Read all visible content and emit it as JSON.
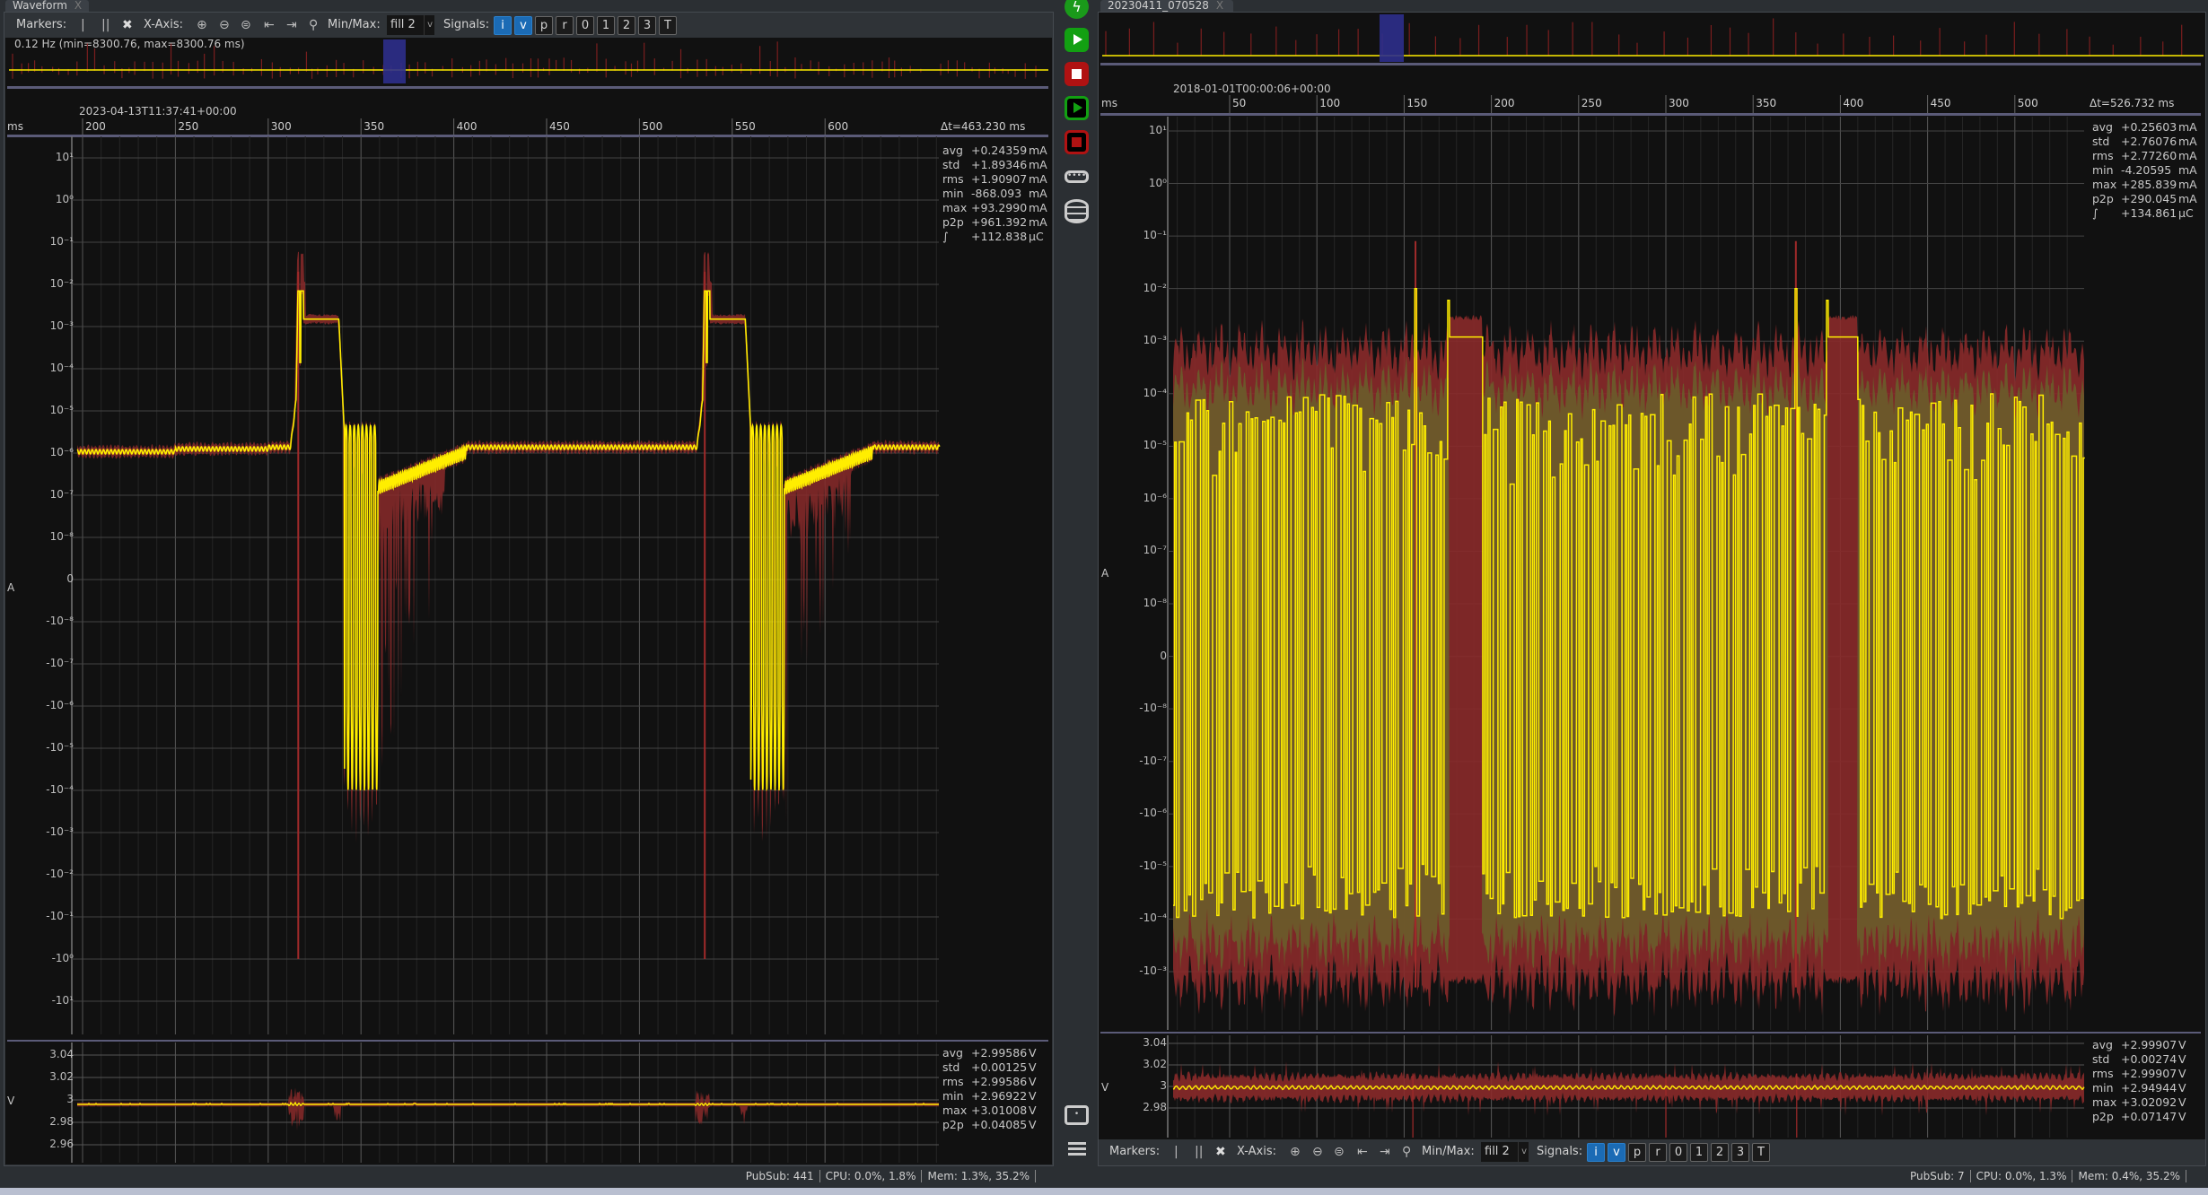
{
  "left": {
    "tab": {
      "label": "Waveform",
      "close": "X"
    },
    "toolbar": {
      "markers": "Markers:",
      "x_axis": "X-Axis:",
      "minmax": "Min/Max:",
      "minmax_value": "fill 2",
      "signals": "Signals:",
      "signal_buttons": [
        {
          "label": "i",
          "on": true
        },
        {
          "label": "v",
          "on": true
        },
        {
          "label": "p",
          "on": false
        },
        {
          "label": "r",
          "on": false
        },
        {
          "label": "0",
          "on": false
        },
        {
          "label": "1",
          "on": false
        },
        {
          "label": "2",
          "on": false
        },
        {
          "label": "3",
          "on": false
        },
        {
          "label": "T",
          "on": false
        }
      ]
    },
    "overview_text": "0.12 Hz (min=8300.76, max=8300.76 ms)",
    "timestamp": "2023-04-13T11:37:41+00:00",
    "x_unit": "ms",
    "x_ticks": [
      "200",
      "250",
      "300",
      "350",
      "400",
      "450",
      "500",
      "550",
      "600"
    ],
    "delta_t": "Δt=463.230 ms",
    "current": {
      "unit": "A",
      "y_ticks": [
        "10¹",
        "10⁰",
        "10⁻¹",
        "10⁻²",
        "10⁻³",
        "10⁻⁴",
        "10⁻⁵",
        "10⁻⁶",
        "10⁻⁷",
        "10⁻⁸",
        "0",
        "-10⁻⁸",
        "-10⁻⁷",
        "-10⁻⁶",
        "-10⁻⁵",
        "-10⁻⁴",
        "-10⁻³",
        "-10⁻²",
        "-10⁻¹",
        "-10⁰",
        "-10¹"
      ],
      "stats": [
        [
          "avg",
          "+0.24359",
          "mA"
        ],
        [
          "std",
          "+1.89346",
          "mA"
        ],
        [
          "rms",
          "+1.90907",
          "mA"
        ],
        [
          "min",
          "-868.093",
          "mA"
        ],
        [
          "max",
          "+93.2990",
          "mA"
        ],
        [
          "p2p",
          "+961.392",
          "mA"
        ],
        [
          "∫",
          "+112.838",
          "µC"
        ]
      ]
    },
    "voltage": {
      "unit": "V",
      "y_ticks": [
        "3.04",
        "3.02",
        "3",
        "2.98",
        "2.96"
      ],
      "stats": [
        [
          "avg",
          "+2.99586",
          "V"
        ],
        [
          "std",
          "+0.00125",
          "V"
        ],
        [
          "rms",
          "+2.99586",
          "V"
        ],
        [
          "min",
          "+2.96922",
          "V"
        ],
        [
          "max",
          "+3.01008",
          "V"
        ],
        [
          "p2p",
          "+0.04085",
          "V"
        ]
      ]
    },
    "status": {
      "pubsub": "PubSub: 441",
      "cpu": "CPU: 0.0%, 1.8%",
      "mem": "Mem: 1.3%, 35.2%"
    }
  },
  "right": {
    "tab": {
      "label": "20230411_070528",
      "close": "X"
    },
    "toolbar": {
      "markers": "Markers:",
      "x_axis": "X-Axis:",
      "minmax": "Min/Max:",
      "minmax_value": "fill 2",
      "signals": "Signals:",
      "signal_buttons": [
        {
          "label": "i",
          "on": true
        },
        {
          "label": "v",
          "on": true
        },
        {
          "label": "p",
          "on": false
        },
        {
          "label": "r",
          "on": false
        },
        {
          "label": "0",
          "on": false
        },
        {
          "label": "1",
          "on": false
        },
        {
          "label": "2",
          "on": false
        },
        {
          "label": "3",
          "on": false
        },
        {
          "label": "T",
          "on": false
        }
      ]
    },
    "timestamp": "2018-01-01T00:00:06+00:00",
    "x_unit": "ms",
    "x_ticks": [
      "50",
      "100",
      "150",
      "200",
      "250",
      "300",
      "350",
      "400",
      "450",
      "500"
    ],
    "delta_t": "Δt=526.732 ms",
    "current": {
      "unit": "A",
      "y_ticks": [
        "10¹",
        "10⁰",
        "10⁻¹",
        "10⁻²",
        "10⁻³",
        "10⁻⁴",
        "10⁻⁵",
        "10⁻⁶",
        "10⁻⁷",
        "10⁻⁸",
        "0",
        "-10⁻⁸",
        "-10⁻⁷",
        "-10⁻⁶",
        "-10⁻⁵",
        "-10⁻⁴",
        "-10⁻³"
      ],
      "stats": [
        [
          "avg",
          "+0.25603",
          "mA"
        ],
        [
          "std",
          "+2.76076",
          "mA"
        ],
        [
          "rms",
          "+2.77260",
          "mA"
        ],
        [
          "min",
          "-4.20595",
          "mA"
        ],
        [
          "max",
          "+285.839",
          "mA"
        ],
        [
          "p2p",
          "+290.045",
          "mA"
        ],
        [
          "∫",
          "+134.861",
          "µC"
        ]
      ]
    },
    "voltage": {
      "unit": "V",
      "y_ticks": [
        "3.04",
        "3.02",
        "3",
        "2.98"
      ],
      "stats": [
        [
          "avg",
          "+2.99907",
          "V"
        ],
        [
          "std",
          "+0.00274",
          "V"
        ],
        [
          "rms",
          "+2.99907",
          "V"
        ],
        [
          "min",
          "+2.94944",
          "V"
        ],
        [
          "max",
          "+3.02092",
          "V"
        ],
        [
          "p2p",
          "+0.07147",
          "V"
        ]
      ]
    },
    "status": {
      "pubsub": "PubSub: 7",
      "cpu": "CPU: 0.0%, 1.3%",
      "mem": "Mem: 0.4%, 35.2%"
    }
  },
  "sidebar": {
    "icons": [
      "lightning-icon",
      "play-icon",
      "stop-icon",
      "play-outline-icon",
      "stop-outline-icon",
      "usb-device-icon",
      "database-icon",
      "chat-icon",
      "menu-icon"
    ]
  },
  "colors": {
    "current_avg": "#ffee00",
    "minmax_fill": "#8a2a2a",
    "std_fill": "#6b5a2a",
    "signal_on": "#1b6bb5",
    "overview_selection": "#2e2f8c",
    "separator": "#5b5b78"
  },
  "chart_data": [
    {
      "type": "line",
      "panel": "left-current",
      "x_range_ms": [
        197.8,
        661
      ],
      "y_scale": "symlog",
      "y_unit": "A",
      "baseline_A": 1.2e-06,
      "pulses": [
        {
          "start_ms": 315,
          "peak_A": 0.007,
          "plateau_A": 0.0015,
          "plateau_end_ms": 338,
          "min_spike_A": -1
        },
        {
          "start_ms": 534,
          "peak_A": 0.007,
          "plateau_A": 0.0015,
          "plateau_end_ms": 556,
          "min_spike_A": -1
        }
      ]
    },
    {
      "type": "line",
      "panel": "left-voltage",
      "x_range_ms": [
        197.8,
        661
      ],
      "ylim": [
        2.955,
        3.05
      ],
      "y_unit": "V",
      "mean_V": 2.996
    },
    {
      "type": "line",
      "panel": "right-current",
      "x_range_ms": [
        17.6,
        544
      ],
      "y_scale": "symlog",
      "y_unit": "A",
      "oscillation_amplitude_A": 0.0001,
      "envelope_A": 0.001,
      "pulses": [
        {
          "start_ms": 156,
          "peak_A": 0.01,
          "plateau_A": 0.0012,
          "plateau_range_ms": [
            176,
            195
          ]
        },
        {
          "start_ms": 374,
          "peak_A": 0.01,
          "plateau_A": 0.0012,
          "plateau_range_ms": [
            393,
            410
          ]
        }
      ]
    },
    {
      "type": "line",
      "panel": "right-voltage",
      "x_range_ms": [
        17.6,
        544
      ],
      "ylim": [
        2.965,
        3.045
      ],
      "y_unit": "V",
      "mean_V": 2.999
    }
  ]
}
